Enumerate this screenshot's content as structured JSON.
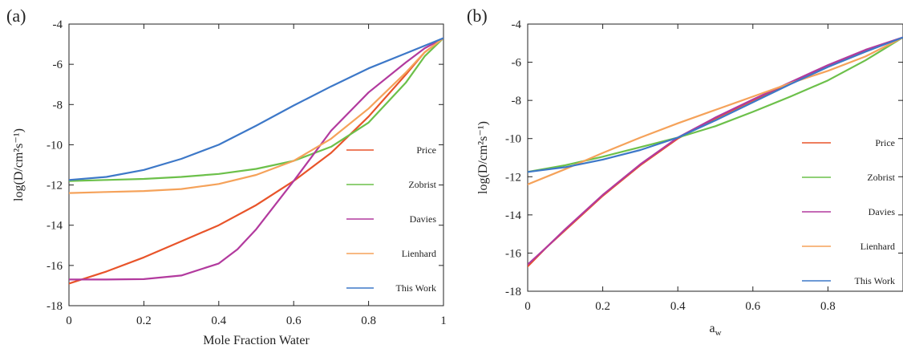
{
  "colors": {
    "Price": "#e8542a",
    "Zobrist": "#6cc04a",
    "Davies": "#b23a9e",
    "Lienhard": "#f5a25a",
    "This Work": "#3d78c8"
  },
  "chart_data": [
    {
      "type": "line",
      "panel_label": "(a)",
      "title": "",
      "xlabel": "Mole Fraction Water",
      "ylabel": "log(D/cm²s⁻¹)",
      "xlim": [
        0,
        1
      ],
      "ylim": [
        -18,
        -4
      ],
      "xticks": [
        0,
        0.2,
        0.4,
        0.6,
        0.8,
        1
      ],
      "xtick_labels": [
        "0",
        "0.2",
        "0.4",
        "0.6",
        "0.8",
        "1"
      ],
      "yticks": [
        -18,
        -16,
        -14,
        -12,
        -10,
        -8,
        -6,
        -4
      ],
      "ytick_labels": [
        "-18",
        "-16",
        "-14",
        "-12",
        "-10",
        "-8",
        "-6",
        "-4"
      ],
      "grid": false,
      "legend_position": "right",
      "series": [
        {
          "name": "Price",
          "points": [
            [
              0,
              -16.9
            ],
            [
              0.1,
              -16.3
            ],
            [
              0.2,
              -15.6
            ],
            [
              0.3,
              -14.8
            ],
            [
              0.4,
              -14.0
            ],
            [
              0.5,
              -13.0
            ],
            [
              0.6,
              -11.8
            ],
            [
              0.7,
              -10.4
            ],
            [
              0.8,
              -8.6
            ],
            [
              0.9,
              -6.5
            ],
            [
              0.95,
              -5.4
            ],
            [
              1,
              -4.7
            ]
          ]
        },
        {
          "name": "Zobrist",
          "points": [
            [
              0,
              -11.8
            ],
            [
              0.1,
              -11.75
            ],
            [
              0.2,
              -11.7
            ],
            [
              0.3,
              -11.6
            ],
            [
              0.4,
              -11.45
            ],
            [
              0.5,
              -11.2
            ],
            [
              0.6,
              -10.8
            ],
            [
              0.7,
              -10.1
            ],
            [
              0.8,
              -8.9
            ],
            [
              0.9,
              -6.9
            ],
            [
              0.95,
              -5.6
            ],
            [
              1,
              -4.7
            ]
          ]
        },
        {
          "name": "Davies",
          "points": [
            [
              0,
              -16.7
            ],
            [
              0.1,
              -16.7
            ],
            [
              0.2,
              -16.68
            ],
            [
              0.3,
              -16.5
            ],
            [
              0.4,
              -15.9
            ],
            [
              0.45,
              -15.2
            ],
            [
              0.5,
              -14.2
            ],
            [
              0.55,
              -13.0
            ],
            [
              0.6,
              -11.8
            ],
            [
              0.7,
              -9.3
            ],
            [
              0.8,
              -7.4
            ],
            [
              0.9,
              -5.9
            ],
            [
              0.95,
              -5.2
            ],
            [
              1,
              -4.7
            ]
          ]
        },
        {
          "name": "Lienhard",
          "points": [
            [
              0,
              -12.4
            ],
            [
              0.1,
              -12.35
            ],
            [
              0.2,
              -12.3
            ],
            [
              0.3,
              -12.2
            ],
            [
              0.4,
              -11.95
            ],
            [
              0.5,
              -11.5
            ],
            [
              0.6,
              -10.8
            ],
            [
              0.7,
              -9.7
            ],
            [
              0.8,
              -8.2
            ],
            [
              0.9,
              -6.4
            ],
            [
              0.95,
              -5.4
            ],
            [
              1,
              -4.7
            ]
          ]
        },
        {
          "name": "This Work",
          "points": [
            [
              0,
              -11.75
            ],
            [
              0.1,
              -11.6
            ],
            [
              0.2,
              -11.25
            ],
            [
              0.3,
              -10.7
            ],
            [
              0.4,
              -10.0
            ],
            [
              0.5,
              -9.05
            ],
            [
              0.6,
              -8.05
            ],
            [
              0.7,
              -7.1
            ],
            [
              0.8,
              -6.2
            ],
            [
              0.9,
              -5.45
            ],
            [
              1,
              -4.7
            ]
          ]
        }
      ]
    },
    {
      "type": "line",
      "panel_label": "(b)",
      "title": "",
      "xlabel": "a_w",
      "ylabel": "log(D/cm²s⁻¹)",
      "xlim": [
        0,
        1
      ],
      "ylim": [
        -18,
        -4
      ],
      "xticks": [
        0,
        0.2,
        0.4,
        0.6,
        0.8
      ],
      "xtick_labels": [
        "0",
        "0.2",
        "0.4",
        "0.6",
        "0.8"
      ],
      "yticks": [
        -18,
        -16,
        -14,
        -12,
        -10,
        -8,
        -6,
        -4
      ],
      "ytick_labels": [
        "-18",
        "-16",
        "-14",
        "-12",
        "-10",
        "-8",
        "-6",
        "-4"
      ],
      "grid": false,
      "legend_position": "right",
      "series": [
        {
          "name": "Price",
          "points": [
            [
              0.0,
              -16.7
            ],
            [
              0.05,
              -15.7
            ],
            [
              0.1,
              -14.8
            ],
            [
              0.2,
              -13.0
            ],
            [
              0.3,
              -11.4
            ],
            [
              0.4,
              -10.0
            ],
            [
              0.5,
              -8.95
            ],
            [
              0.6,
              -8.0
            ],
            [
              0.7,
              -7.1
            ],
            [
              0.8,
              -6.2
            ],
            [
              0.9,
              -5.4
            ],
            [
              1,
              -4.7
            ]
          ]
        },
        {
          "name": "Zobrist",
          "points": [
            [
              0,
              -11.75
            ],
            [
              0.1,
              -11.4
            ],
            [
              0.2,
              -10.95
            ],
            [
              0.3,
              -10.45
            ],
            [
              0.4,
              -9.95
            ],
            [
              0.5,
              -9.35
            ],
            [
              0.6,
              -8.6
            ],
            [
              0.7,
              -7.8
            ],
            [
              0.8,
              -6.95
            ],
            [
              0.9,
              -5.9
            ],
            [
              1,
              -4.7
            ]
          ]
        },
        {
          "name": "Davies",
          "points": [
            [
              0.0,
              -16.6
            ],
            [
              0.05,
              -15.7
            ],
            [
              0.1,
              -14.75
            ],
            [
              0.2,
              -12.95
            ],
            [
              0.3,
              -11.35
            ],
            [
              0.4,
              -9.95
            ],
            [
              0.5,
              -8.9
            ],
            [
              0.6,
              -7.95
            ],
            [
              0.7,
              -7.05
            ],
            [
              0.8,
              -6.15
            ],
            [
              0.9,
              -5.35
            ],
            [
              1,
              -4.7
            ]
          ]
        },
        {
          "name": "Lienhard",
          "points": [
            [
              0,
              -12.4
            ],
            [
              0.1,
              -11.6
            ],
            [
              0.2,
              -10.75
            ],
            [
              0.3,
              -9.95
            ],
            [
              0.4,
              -9.2
            ],
            [
              0.5,
              -8.5
            ],
            [
              0.6,
              -7.8
            ],
            [
              0.7,
              -7.1
            ],
            [
              0.8,
              -6.45
            ],
            [
              0.9,
              -5.7
            ],
            [
              1,
              -4.7
            ]
          ]
        },
        {
          "name": "This Work",
          "points": [
            [
              0,
              -11.75
            ],
            [
              0.1,
              -11.5
            ],
            [
              0.2,
              -11.1
            ],
            [
              0.3,
              -10.6
            ],
            [
              0.4,
              -9.95
            ],
            [
              0.5,
              -9.05
            ],
            [
              0.6,
              -8.1
            ],
            [
              0.7,
              -7.15
            ],
            [
              0.8,
              -6.25
            ],
            [
              0.9,
              -5.45
            ],
            [
              1,
              -4.7
            ]
          ]
        }
      ]
    }
  ]
}
